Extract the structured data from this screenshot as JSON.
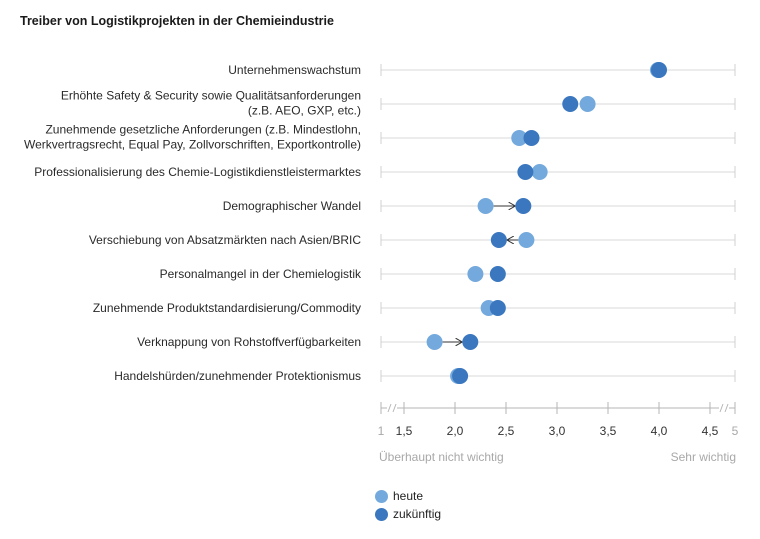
{
  "title": "Treiber von Logistikprojekten in der Chemieindustrie",
  "chart_data": {
    "type": "scatter",
    "title": "Treiber von Logistikprojekten in der Chemieindustrie",
    "xlim": [
      1,
      5
    ],
    "ticks": [
      {
        "value": 1,
        "label": "1",
        "muted": true
      },
      {
        "value": 1.5,
        "label": "1,5",
        "muted": false
      },
      {
        "value": 2.0,
        "label": "2,0",
        "muted": false
      },
      {
        "value": 2.5,
        "label": "2,5",
        "muted": false
      },
      {
        "value": 3.0,
        "label": "3,0",
        "muted": false
      },
      {
        "value": 3.5,
        "label": "3,5",
        "muted": false
      },
      {
        "value": 4.0,
        "label": "4,0",
        "muted": false
      },
      {
        "value": 4.5,
        "label": "4,5",
        "muted": false
      },
      {
        "value": 5,
        "label": "5",
        "muted": true
      }
    ],
    "axis_min_label": "Überhaupt nicht wichtig",
    "axis_max_label": "Sehr wichtig",
    "axis_break": true,
    "legend_position": "bottom",
    "series": [
      {
        "name": "heute",
        "color": "#74a9dd"
      },
      {
        "name": "zukünftig",
        "color": "#3a77bf"
      }
    ],
    "categories": [
      {
        "label": [
          "Unternehmenswachstum"
        ],
        "heute": 3.99,
        "zukuenftig": 4.0,
        "arrow": false
      },
      {
        "label": [
          "Erhöhte Safety & Security sowie Qualitätsanforderungen",
          "(z.B. AEO, GXP, etc.)"
        ],
        "heute": 3.3,
        "zukuenftig": 3.13,
        "arrow": false
      },
      {
        "label": [
          "Zunehmende gesetzliche Anforderungen (z.B. Mindestlohn,",
          "Werkvertragsrecht, Equal Pay, Zollvorschriften, Exportkontrolle)"
        ],
        "heute": 2.63,
        "zukuenftig": 2.75,
        "arrow": false
      },
      {
        "label": [
          "Professionalisierung des Chemie-Logistikdienstleistermarktes"
        ],
        "heute": 2.83,
        "zukuenftig": 2.69,
        "arrow": false
      },
      {
        "label": [
          "Demographischer Wandel"
        ],
        "heute": 2.3,
        "zukuenftig": 2.67,
        "arrow": true
      },
      {
        "label": [
          "Verschiebung von Absatzmärkten nach Asien/BRIC"
        ],
        "heute": 2.7,
        "zukuenftig": 2.43,
        "arrow": true
      },
      {
        "label": [
          "Personalmangel in der Chemielogistik"
        ],
        "heute": 2.2,
        "zukuenftig": 2.42,
        "arrow": false
      },
      {
        "label": [
          "Zunehmende Produktstandardisierung/Commodity"
        ],
        "heute": 2.33,
        "zukuenftig": 2.42,
        "arrow": false
      },
      {
        "label": [
          "Verknappung von Rohstoffverfügbarkeiten"
        ],
        "heute": 1.8,
        "zukuenftig": 2.15,
        "arrow": true
      },
      {
        "label": [
          "Handelshürden/zunehmender Protektionismus"
        ],
        "heute": 2.03,
        "zukuenftig": 2.05,
        "arrow": false
      }
    ]
  }
}
